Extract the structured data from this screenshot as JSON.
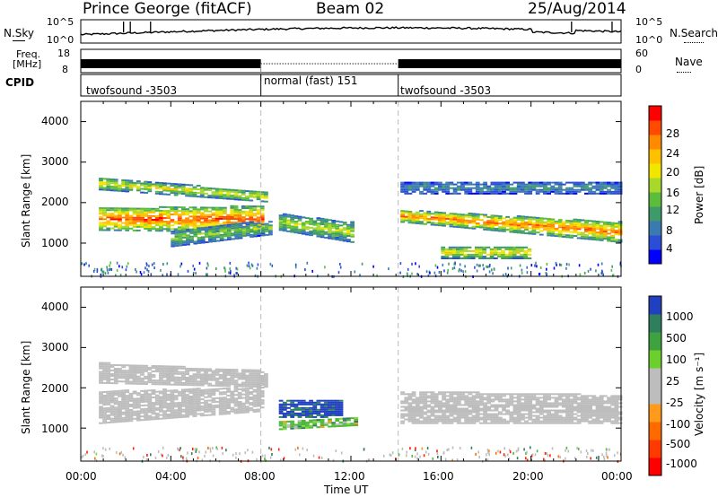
{
  "header": {
    "station": "Prince George (fitACF)",
    "beam": "Beam 02",
    "date": "25/Aug/2014"
  },
  "noise_panel": {
    "left_label": "N.Sky",
    "right_label": "N.Search",
    "left_ticks": [
      "10^5",
      "10^0"
    ],
    "right_ticks": [
      "10^5",
      "10^0"
    ]
  },
  "freq_panel": {
    "left_label_1": "Freq.",
    "left_label_2": "[MHz]",
    "right_label": "Nave",
    "left_ticks": [
      "18",
      "8"
    ],
    "right_ticks": [
      "60",
      "0"
    ]
  },
  "cpid_panel": {
    "label": "CPID",
    "segments": [
      "twofsound -3503",
      "normal (fast) 151",
      "twofsound -3503"
    ]
  },
  "axes": {
    "ylabel": "Slant Range [km]",
    "xlabel": "Time UT",
    "xticks": [
      "00:00",
      "04:00",
      "08:00",
      "12:00",
      "16:00",
      "20:00",
      "00:00"
    ],
    "yticks": [
      "1000",
      "2000",
      "3000",
      "4000"
    ]
  },
  "colors": {
    "power_scale": [
      "#0000ff",
      "#2a4fd6",
      "#3a7ab0",
      "#3f9a6a",
      "#5cbc3c",
      "#a8d82a",
      "#f2e600",
      "#ffc000",
      "#ff8a00",
      "#ff4a00",
      "#ff0000"
    ],
    "velocity_scale": [
      "#2040c0",
      "#2f7f5f",
      "#3ea33e",
      "#6ccf2e",
      "#bdbdbd",
      "#bdbdbd",
      "#ff9a1a",
      "#ff6a00",
      "#ff3a00",
      "#ff0000"
    ]
  },
  "chart_data": [
    {
      "type": "heatmap",
      "title": "Power",
      "xlabel": "Time UT",
      "ylabel": "Slant Range [km]",
      "ylim": [
        180,
        4500
      ],
      "xlim": [
        "00:00",
        "24:00"
      ],
      "colorbar": {
        "label": "Power [dB]",
        "ticks": [
          "4",
          "8",
          "12",
          "16",
          "20",
          "24",
          "28"
        ],
        "range": [
          0,
          30
        ]
      },
      "bands": [
        {
          "t": [
            0.8,
            8.0
          ],
          "r_start": [
            1300,
            1850
          ],
          "r_end": [
            1250,
            1900
          ],
          "width": 300,
          "power": 28
        },
        {
          "t": [
            0.8,
            8.2
          ],
          "r_start": [
            2300,
            2600
          ],
          "r_end": [
            2000,
            2250
          ],
          "width": 260,
          "power": 18
        },
        {
          "t": [
            4.0,
            8.5
          ],
          "r_start": [
            900,
            1300
          ],
          "r_end": [
            1200,
            1550
          ],
          "width": 200,
          "power": 14
        },
        {
          "t": [
            8.8,
            12.0
          ],
          "r_start": [
            1300,
            1700
          ],
          "r_end": [
            1000,
            1500
          ],
          "width": 300,
          "power": 16
        },
        {
          "t": [
            14.2,
            24.0
          ],
          "r_start": [
            1500,
            1800
          ],
          "r_end": [
            1000,
            1500
          ],
          "width": 350,
          "power": 26
        },
        {
          "t": [
            16.0,
            20.0
          ],
          "r_start": [
            600,
            900
          ],
          "r_end": [
            600,
            900
          ],
          "width": 150,
          "power": 20
        },
        {
          "t": [
            14.2,
            24.0
          ],
          "r_start": [
            2200,
            2500
          ],
          "r_end": [
            2200,
            2500
          ],
          "width": 200,
          "power": 8
        }
      ]
    },
    {
      "type": "heatmap",
      "title": "Velocity",
      "xlabel": "Time UT",
      "ylabel": "Slant Range [km]",
      "ylim": [
        180,
        4500
      ],
      "xlim": [
        "00:00",
        "24:00"
      ],
      "colorbar": {
        "label": "Velocity [m s⁻¹]",
        "ticks": [
          "1000",
          "500",
          "100",
          "25",
          "-25",
          "-100",
          "-500",
          "-1000"
        ],
        "range": [
          -1000,
          1000
        ]
      },
      "bands": [
        {
          "t": [
            0.8,
            8.0
          ],
          "r_start": [
            1100,
            1900
          ],
          "r_end": [
            1400,
            2000
          ],
          "velocity": 0
        },
        {
          "t": [
            0.8,
            8.2
          ],
          "r_start": [
            2100,
            2600
          ],
          "r_end": [
            2000,
            2400
          ],
          "velocity": 0
        },
        {
          "t": [
            8.8,
            11.5
          ],
          "r_start": [
            1250,
            1700
          ],
          "r_end": [
            1250,
            1700
          ],
          "velocity": 800
        },
        {
          "t": [
            8.8,
            12.2
          ],
          "r_start": [
            950,
            1150
          ],
          "r_end": [
            1050,
            1250
          ],
          "velocity": 150
        },
        {
          "t": [
            14.2,
            24.0
          ],
          "r_start": [
            1100,
            1900
          ],
          "r_end": [
            1100,
            1800
          ],
          "velocity": 0
        }
      ]
    }
  ]
}
